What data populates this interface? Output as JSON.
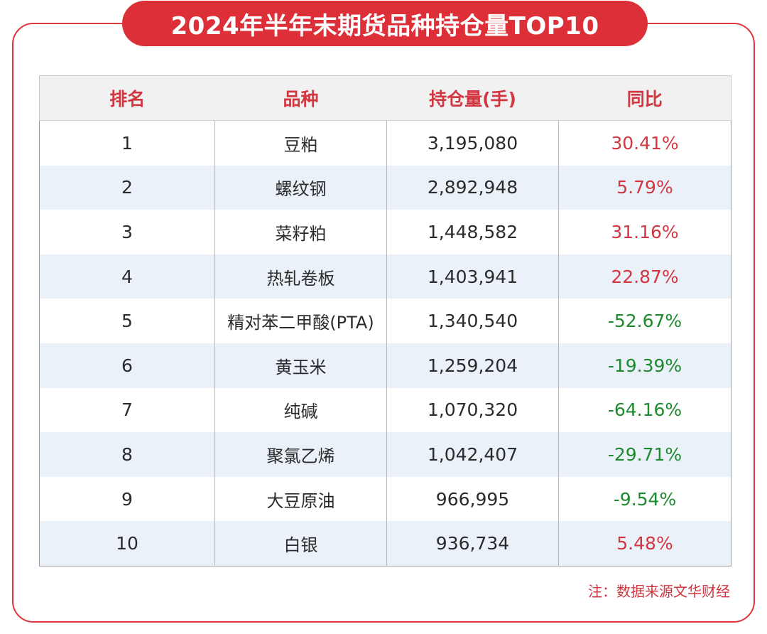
{
  "title": "2024年半年末期货品种持仓量TOP10",
  "table": {
    "headers": [
      "排名",
      "品种",
      "持仓量(手)",
      "同比"
    ],
    "rows": [
      {
        "rank": "1",
        "name": "豆粕",
        "oi": "3,195,080",
        "yoy": "30.41%",
        "dir": "up"
      },
      {
        "rank": "2",
        "name": "螺纹钢",
        "oi": "2,892,948",
        "yoy": "5.79%",
        "dir": "up"
      },
      {
        "rank": "3",
        "name": "菜籽粕",
        "oi": "1,448,582",
        "yoy": "31.16%",
        "dir": "up"
      },
      {
        "rank": "4",
        "name": "热轧卷板",
        "oi": "1,403,941",
        "yoy": "22.87%",
        "dir": "up"
      },
      {
        "rank": "5",
        "name": "精对苯二甲酸(PTA)",
        "oi": "1,340,540",
        "yoy": "-52.67%",
        "dir": "down"
      },
      {
        "rank": "6",
        "name": "黄玉米",
        "oi": "1,259,204",
        "yoy": "-19.39%",
        "dir": "down"
      },
      {
        "rank": "7",
        "name": "纯碱",
        "oi": "1,070,320",
        "yoy": "-64.16%",
        "dir": "down"
      },
      {
        "rank": "8",
        "name": "聚氯乙烯",
        "oi": "1,042,407",
        "yoy": "-29.71%",
        "dir": "down"
      },
      {
        "rank": "9",
        "name": "大豆原油",
        "oi": "966,995",
        "yoy": "-9.54%",
        "dir": "down"
      },
      {
        "rank": "10",
        "name": "白银",
        "oi": "936,734",
        "yoy": "5.48%",
        "dir": "up"
      }
    ]
  },
  "note": "注：数据来源文华财经",
  "colors": {
    "accent": "#dd2f38",
    "up": "#d23640",
    "down": "#1e8a2e",
    "stripe": "#eaf1f8",
    "header_bg": "#f1f1f1"
  },
  "chart_data": {
    "type": "table",
    "title": "2024年半年末期货品种持仓量TOP10",
    "columns": [
      "排名",
      "品种",
      "持仓量(手)",
      "同比"
    ],
    "rows": [
      [
        1,
        "豆粕",
        3195080,
        "30.41%"
      ],
      [
        2,
        "螺纹钢",
        2892948,
        "5.79%"
      ],
      [
        3,
        "菜籽粕",
        1448582,
        "31.16%"
      ],
      [
        4,
        "热轧卷板",
        1403941,
        "22.87%"
      ],
      [
        5,
        "精对苯二甲酸(PTA)",
        1340540,
        "-52.67%"
      ],
      [
        6,
        "黄玉米",
        1259204,
        "-19.39%"
      ],
      [
        7,
        "纯碱",
        1070320,
        "-64.16%"
      ],
      [
        8,
        "聚氯乙烯",
        1042407,
        "-29.71%"
      ],
      [
        9,
        "大豆原油",
        966995,
        "-9.54%"
      ],
      [
        10,
        "白银",
        936734,
        "5.48%"
      ]
    ],
    "note": "注：数据来源文华财经"
  }
}
